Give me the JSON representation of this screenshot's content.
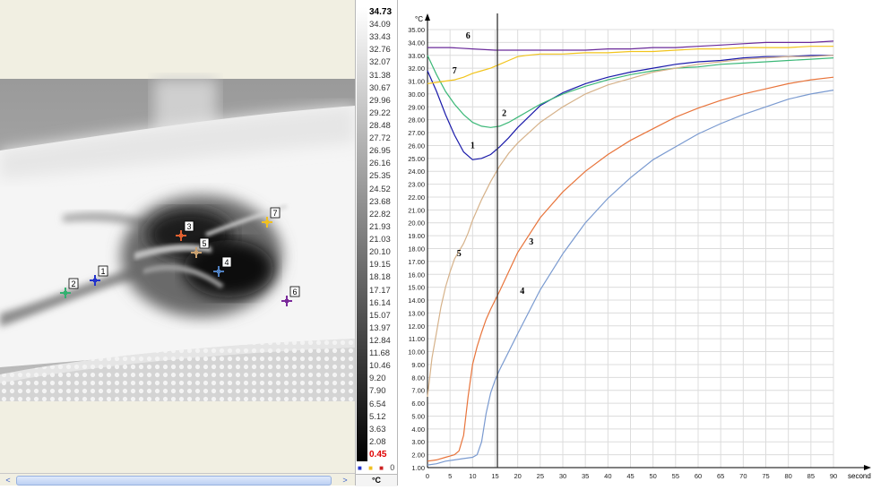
{
  "thermal_view": {
    "markers": [
      {
        "id": "1",
        "color": "#2233cc"
      },
      {
        "id": "2",
        "color": "#33b070"
      },
      {
        "id": "3",
        "color": "#e06030"
      },
      {
        "id": "4",
        "color": "#5080c0"
      },
      {
        "id": "5",
        "color": "#c8a070"
      },
      {
        "id": "6",
        "color": "#7a2a9a"
      },
      {
        "id": "7",
        "color": "#f0c020"
      }
    ],
    "scroll_left_icon": "<",
    "scroll_right_icon": ">"
  },
  "colorbar": {
    "max": "34.73",
    "labels": [
      "34.09",
      "33.43",
      "32.76",
      "32.07",
      "31.38",
      "30.67",
      "29.96",
      "29.22",
      "28.48",
      "27.72",
      "26.95",
      "26.16",
      "25.35",
      "24.52",
      "23.68",
      "22.82",
      "21.93",
      "21.03",
      "20.10",
      "19.15",
      "18.18",
      "17.17",
      "16.14",
      "15.07",
      "13.97",
      "12.84",
      "11.68",
      "10.46",
      "9.20",
      "7.90",
      "6.54",
      "5.12",
      "3.63",
      "2.08"
    ],
    "min": "0.45",
    "indicator_value": "0",
    "unit": "°C"
  },
  "chart_data": {
    "type": "line",
    "y_unit_label": "°C",
    "x_unit_label": "second",
    "xlim": [
      0,
      90
    ],
    "ylim": [
      1,
      35
    ],
    "x_ticks": [
      0,
      5,
      10,
      15,
      20,
      25,
      30,
      35,
      40,
      45,
      50,
      55,
      60,
      65,
      70,
      75,
      80,
      85,
      90
    ],
    "y_ticks": [
      1,
      2,
      3,
      4,
      5,
      6,
      7,
      8,
      9,
      10,
      11,
      12,
      13,
      14,
      15,
      16,
      17,
      18,
      19,
      20,
      21,
      22,
      23,
      24,
      25,
      26,
      27,
      28,
      29,
      30,
      31,
      32,
      33,
      34,
      35
    ],
    "grid": true,
    "cursor_x": 15.5,
    "series": [
      {
        "name": "1",
        "color": "#1a1aaa",
        "label_at": [
          10,
          25.8
        ],
        "x": [
          0,
          2,
          4,
          6,
          8,
          10,
          12,
          14,
          16,
          18,
          20,
          25,
          30,
          35,
          40,
          45,
          50,
          55,
          60,
          65,
          70,
          75,
          80,
          85,
          90
        ],
        "y": [
          31.8,
          30.2,
          28.4,
          26.8,
          25.5,
          24.9,
          25.0,
          25.3,
          25.9,
          26.6,
          27.4,
          29.1,
          30.1,
          30.8,
          31.3,
          31.7,
          32.0,
          32.3,
          32.5,
          32.6,
          32.8,
          32.9,
          32.9,
          33.0,
          33.0
        ]
      },
      {
        "name": "2",
        "color": "#3cb878",
        "label_at": [
          17,
          28.3
        ],
        "x": [
          0,
          2,
          4,
          6,
          8,
          10,
          12,
          14,
          16,
          18,
          20,
          25,
          30,
          35,
          40,
          45,
          50,
          55,
          60,
          65,
          70,
          75,
          80,
          85,
          90
        ],
        "y": [
          33.0,
          31.5,
          30.2,
          29.2,
          28.4,
          27.8,
          27.5,
          27.4,
          27.5,
          27.8,
          28.2,
          29.2,
          30.0,
          30.6,
          31.1,
          31.5,
          31.8,
          32.0,
          32.1,
          32.3,
          32.4,
          32.5,
          32.6,
          32.7,
          32.8
        ]
      },
      {
        "name": "3",
        "color": "#e8743b",
        "label_at": [
          23,
          18.3
        ],
        "x": [
          0,
          2,
          4,
          5,
          6,
          7,
          8,
          9,
          10,
          11,
          12,
          13,
          14,
          15,
          16,
          18,
          20,
          25,
          30,
          35,
          40,
          45,
          50,
          55,
          60,
          65,
          70,
          75,
          80,
          85,
          90
        ],
        "y": [
          1.5,
          1.6,
          1.8,
          1.9,
          2.0,
          2.3,
          3.5,
          6.5,
          9.0,
          10.4,
          11.5,
          12.5,
          13.3,
          14.0,
          14.7,
          16.2,
          17.7,
          20.4,
          22.4,
          24.0,
          25.3,
          26.4,
          27.3,
          28.2,
          28.9,
          29.5,
          30.0,
          30.4,
          30.8,
          31.1,
          31.3
        ]
      },
      {
        "name": "4",
        "color": "#7a9ad0",
        "label_at": [
          21,
          14.5
        ],
        "x": [
          0,
          2,
          4,
          6,
          8,
          10,
          11,
          12,
          13,
          14,
          15,
          16,
          18,
          20,
          25,
          30,
          35,
          40,
          45,
          50,
          55,
          60,
          65,
          70,
          75,
          80,
          85,
          90
        ],
        "y": [
          1.2,
          1.3,
          1.5,
          1.6,
          1.7,
          1.8,
          2.0,
          3.0,
          5.2,
          6.8,
          7.8,
          8.6,
          10.0,
          11.4,
          14.8,
          17.6,
          20.0,
          21.9,
          23.5,
          24.9,
          25.9,
          26.9,
          27.7,
          28.4,
          29.0,
          29.6,
          30.0,
          30.3
        ]
      },
      {
        "name": "5",
        "color": "#d6b28a",
        "label_at": [
          7,
          17.4
        ],
        "x": [
          0,
          1,
          2,
          3,
          4,
          5,
          6,
          7,
          8,
          9,
          10,
          12,
          14,
          16,
          18,
          20,
          25,
          30,
          35,
          40,
          45,
          50,
          55,
          60,
          65,
          70,
          75,
          80,
          85,
          90
        ],
        "y": [
          6.5,
          9.5,
          11.5,
          13.5,
          15.0,
          16.2,
          17.2,
          17.8,
          18.4,
          19.2,
          20.2,
          21.8,
          23.2,
          24.4,
          25.4,
          26.2,
          27.8,
          29.0,
          30.0,
          30.7,
          31.2,
          31.7,
          32.0,
          32.3,
          32.5,
          32.7,
          32.8,
          32.9,
          32.9,
          33.0
        ]
      },
      {
        "name": "6",
        "color": "#6a2a9a",
        "label_at": [
          9,
          34.3
        ],
        "x": [
          0,
          5,
          10,
          15,
          20,
          25,
          30,
          35,
          40,
          45,
          50,
          55,
          60,
          65,
          70,
          75,
          80,
          85,
          90
        ],
        "y": [
          33.6,
          33.6,
          33.5,
          33.4,
          33.4,
          33.4,
          33.4,
          33.4,
          33.5,
          33.5,
          33.6,
          33.6,
          33.7,
          33.8,
          33.9,
          34.0,
          34.0,
          34.0,
          34.1
        ]
      },
      {
        "name": "7",
        "color": "#f2c41c",
        "label_at": [
          6,
          31.6
        ],
        "x": [
          0,
          2,
          4,
          6,
          8,
          10,
          12,
          14,
          16,
          18,
          20,
          22,
          25,
          30,
          35,
          40,
          45,
          50,
          55,
          60,
          65,
          70,
          75,
          80,
          85,
          90
        ],
        "y": [
          30.8,
          30.9,
          31.0,
          31.1,
          31.3,
          31.6,
          31.8,
          32.0,
          32.3,
          32.6,
          32.9,
          33.0,
          33.1,
          33.1,
          33.2,
          33.2,
          33.3,
          33.3,
          33.4,
          33.5,
          33.5,
          33.6,
          33.6,
          33.6,
          33.7,
          33.7
        ]
      }
    ]
  }
}
